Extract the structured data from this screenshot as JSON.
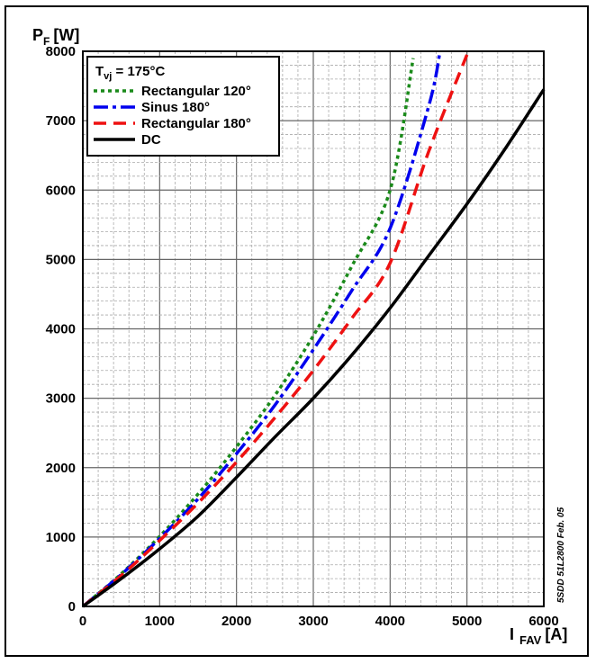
{
  "chart_data": {
    "type": "line",
    "title": "",
    "ylabel": {
      "main": "P",
      "sub": "F",
      "unit": "[W]"
    },
    "xlabel": {
      "main": "I",
      "sub": "FAV",
      "unit": "[A]"
    },
    "xlim": [
      0,
      6000
    ],
    "ylim": [
      0,
      8000
    ],
    "x_ticks": [
      "0",
      "1000",
      "2000",
      "3000",
      "4000",
      "5000",
      "6000"
    ],
    "y_ticks": [
      "0",
      "1000",
      "2000",
      "3000",
      "4000",
      "5000",
      "6000",
      "7000",
      "8000"
    ],
    "grid": true,
    "legend_position": "top-left",
    "legend_title": {
      "main": "T",
      "sub": "vj",
      "rest": " = 175°C"
    },
    "side_note": "5SDD 51L2800 Feb. 05",
    "series": [
      {
        "name": "Rectangular 120°",
        "color": "#1a8a1a",
        "style": "dotted",
        "x": [
          0,
          500,
          1000,
          1500,
          2000,
          2500,
          3000,
          3500,
          4000,
          4300
        ],
        "y": [
          0,
          470,
          1010,
          1620,
          2300,
          3040,
          3900,
          4900,
          6000,
          7900
        ]
      },
      {
        "name": "Sinus 180°",
        "color": "#0000ee",
        "style": "dashdot",
        "x": [
          0,
          500,
          1000,
          1500,
          2000,
          2500,
          3000,
          3500,
          4000,
          4500,
          4650
        ],
        "y": [
          0,
          460,
          980,
          1550,
          2200,
          2900,
          3700,
          4550,
          5450,
          7200,
          8000
        ]
      },
      {
        "name": "Rectangular 180°",
        "color": "#ee1111",
        "style": "dashed",
        "x": [
          0,
          500,
          1000,
          1500,
          2000,
          2500,
          3000,
          3500,
          4000,
          4500,
          5000
        ],
        "y": [
          0,
          445,
          950,
          1490,
          2080,
          2720,
          3400,
          4150,
          4950,
          6550,
          7950
        ]
      },
      {
        "name": "DC",
        "color": "#000000",
        "style": "solid",
        "x": [
          0,
          500,
          1000,
          1500,
          2000,
          2500,
          3000,
          3500,
          4000,
          4500,
          5000,
          5500,
          6000
        ],
        "y": [
          0,
          400,
          830,
          1300,
          1860,
          2440,
          3000,
          3620,
          4300,
          5050,
          5800,
          6600,
          7450
        ]
      }
    ]
  }
}
